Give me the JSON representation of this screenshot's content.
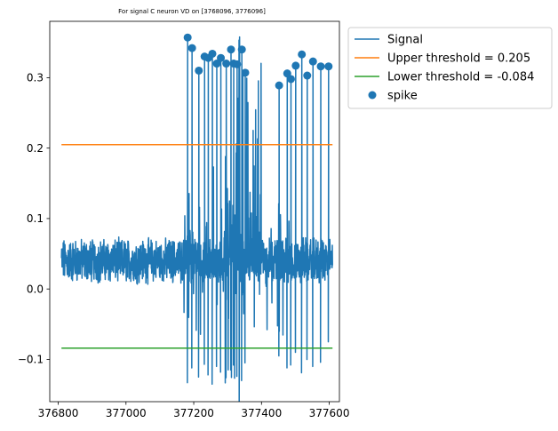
{
  "chart_data": {
    "type": "line",
    "title": "For signal C neuron VD on [3768096, 3776096]",
    "xlabel": "",
    "ylabel": "",
    "xlim": [
      376775,
      377630
    ],
    "ylim": [
      -0.16,
      0.38
    ],
    "x_ticks": [
      376800,
      377000,
      377200,
      377400,
      377600
    ],
    "y_ticks": [
      -0.1,
      0.0,
      0.1,
      0.2,
      0.3
    ],
    "x_tick_labels": [
      "376800",
      "377000",
      "377200",
      "377400",
      "377600"
    ],
    "y_tick_labels": [
      "−0.1",
      "0.0",
      "0.1",
      "0.2",
      "0.3"
    ],
    "grid": false,
    "legend_position": "outside upper-right",
    "series": [
      {
        "name": "Signal",
        "kind": "line",
        "color": "#1f77b4",
        "x_start": 376809.6,
        "x_end": 377609.6,
        "baseline": 0.04,
        "noise": 0.025
      },
      {
        "name": "Upper threshold = 0.205",
        "kind": "hline",
        "color": "#ff7f0e",
        "y": 0.205,
        "x": [
          376809.6,
          377609.6
        ]
      },
      {
        "name": "Lower threshold = -0.084",
        "kind": "hline",
        "color": "#2ca02c",
        "y": -0.084,
        "x": [
          376809.6,
          377609.6
        ]
      },
      {
        "name": "spike",
        "kind": "scatter",
        "color": "#1f77b4",
        "x": [
          377182,
          377195,
          377215,
          377232,
          377243,
          377255,
          377268,
          377280,
          377296,
          377310,
          377318,
          377328,
          377342,
          377352,
          377452,
          377476,
          377487,
          377501,
          377519,
          377535,
          377552,
          377575,
          377598
        ],
        "y": [
          0.357,
          0.342,
          0.31,
          0.33,
          0.328,
          0.334,
          0.32,
          0.328,
          0.32,
          0.34,
          0.32,
          0.319,
          0.34,
          0.307,
          0.289,
          0.306,
          0.298,
          0.317,
          0.333,
          0.303,
          0.323,
          0.316,
          0.316
        ]
      }
    ],
    "spike_troughs": [
      -0.133,
      -0.112,
      -0.125,
      -0.107,
      -0.122,
      -0.135,
      -0.11,
      -0.118,
      -0.126,
      -0.115,
      -0.108,
      -0.124,
      -0.13,
      -0.105,
      -0.095,
      -0.112,
      -0.108,
      -0.09,
      -0.119,
      -0.1,
      -0.11,
      -0.104,
      -0.075
    ]
  }
}
